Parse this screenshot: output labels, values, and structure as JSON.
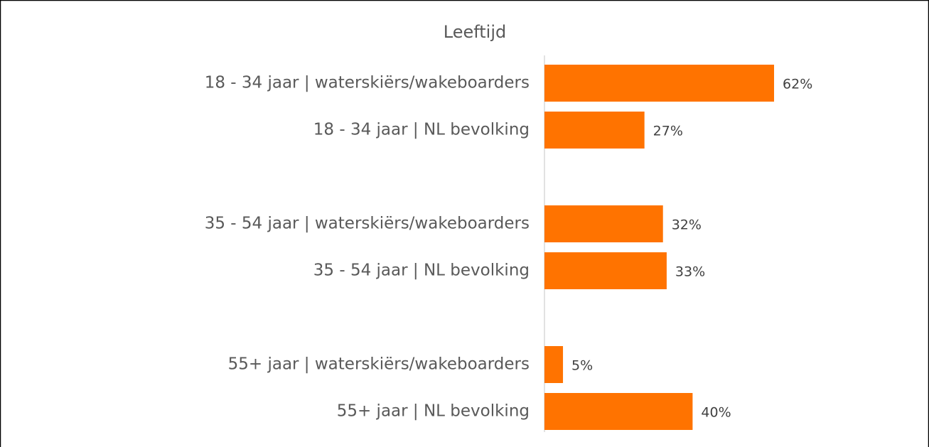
{
  "chart_data": {
    "type": "hbar",
    "title": "Leeftijd",
    "categories": [
      "18 - 34 jaar | waterskiërs/wakeboarders",
      "18 - 34 jaar | NL bevolking",
      null,
      "35 - 54 jaar | waterskiërs/wakeboarders",
      "35 - 54 jaar | NL bevolking",
      null,
      "55+ jaar | waterskiërs/wakeboarders",
      "55+ jaar | NL bevolking"
    ],
    "values": [
      62,
      27,
      null,
      32,
      33,
      null,
      5,
      40
    ],
    "value_labels": [
      "62%",
      "27%",
      null,
      "32%",
      "33%",
      null,
      "5%",
      "40%"
    ],
    "color": "#ff7300",
    "xlim": [
      0,
      100
    ]
  }
}
